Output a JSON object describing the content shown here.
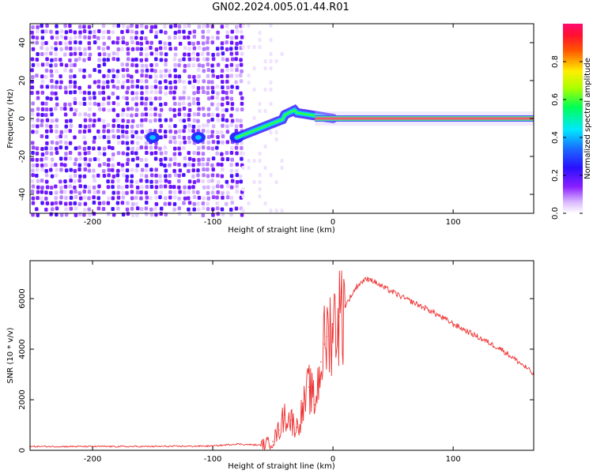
{
  "title": "GN02.2024.005.01.44.R01",
  "chart_data": [
    {
      "type": "heatmap",
      "xlabel": "Height of straight line (km)",
      "ylabel": "Frequency (Hz)",
      "xlim": [
        -252,
        167
      ],
      "ylim": [
        -50,
        50
      ],
      "x_ticks": [
        -200,
        -100,
        0,
        100
      ],
      "x_tick_labels": [
        "-200",
        "-100",
        "0",
        "100"
      ],
      "y_ticks": [
        -40,
        -20,
        0,
        20,
        40
      ],
      "y_tick_labels": [
        "-40",
        "-20",
        "0",
        "20",
        "40"
      ],
      "colorbar": {
        "label": "Normalized spectral amplitude",
        "range": [
          0,
          1
        ],
        "ticks": [
          0.0,
          0.2,
          0.4,
          0.6,
          0.8
        ],
        "tick_labels": [
          "0.0",
          "0.2",
          "0.4",
          "0.6",
          "0.8"
        ],
        "colormap": "rainbow (white-violet-blue-cyan-green-yellow-red-magenta)"
      },
      "features": {
        "noise_region_km": [
          -252,
          -76
        ],
        "signal_line_frequency_hz": 0,
        "signal_start_km": -80,
        "peak_band_km": [
          -35,
          167
        ]
      },
      "grid": false
    },
    {
      "type": "line",
      "xlabel": "Height of straight line (km)",
      "ylabel": "SNR (10 * v/v)",
      "xlim": [
        -252,
        167
      ],
      "ylim": [
        0,
        7500
      ],
      "x_ticks": [
        -200,
        -100,
        0,
        100
      ],
      "x_tick_labels": [
        "-200",
        "-100",
        "0",
        "100"
      ],
      "y_ticks": [
        0,
        2000,
        4000,
        6000
      ],
      "y_tick_labels": [
        "0",
        "2000",
        "4000",
        "6000"
      ],
      "color": "#ee3030",
      "series": [
        {
          "x": [
            -252,
            -200,
            -150,
            -100,
            -80,
            -60,
            -50,
            -45,
            -40,
            -35,
            -30,
            -25,
            -20,
            -15,
            -10,
            -7,
            -5,
            0,
            5,
            10,
            15,
            20,
            25,
            30,
            35,
            40,
            60,
            80,
            100,
            120,
            140,
            160,
            167
          ],
          "y": [
            150,
            150,
            150,
            170,
            250,
            200,
            350,
            800,
            1400,
            1200,
            900,
            1600,
            2500,
            1800,
            3500,
            4200,
            4500,
            5000,
            5300,
            5700,
            6100,
            6500,
            6700,
            6800,
            6650,
            6500,
            6000,
            5550,
            5000,
            4500,
            4000,
            3300,
            3000
          ]
        }
      ],
      "grid": false
    }
  ]
}
